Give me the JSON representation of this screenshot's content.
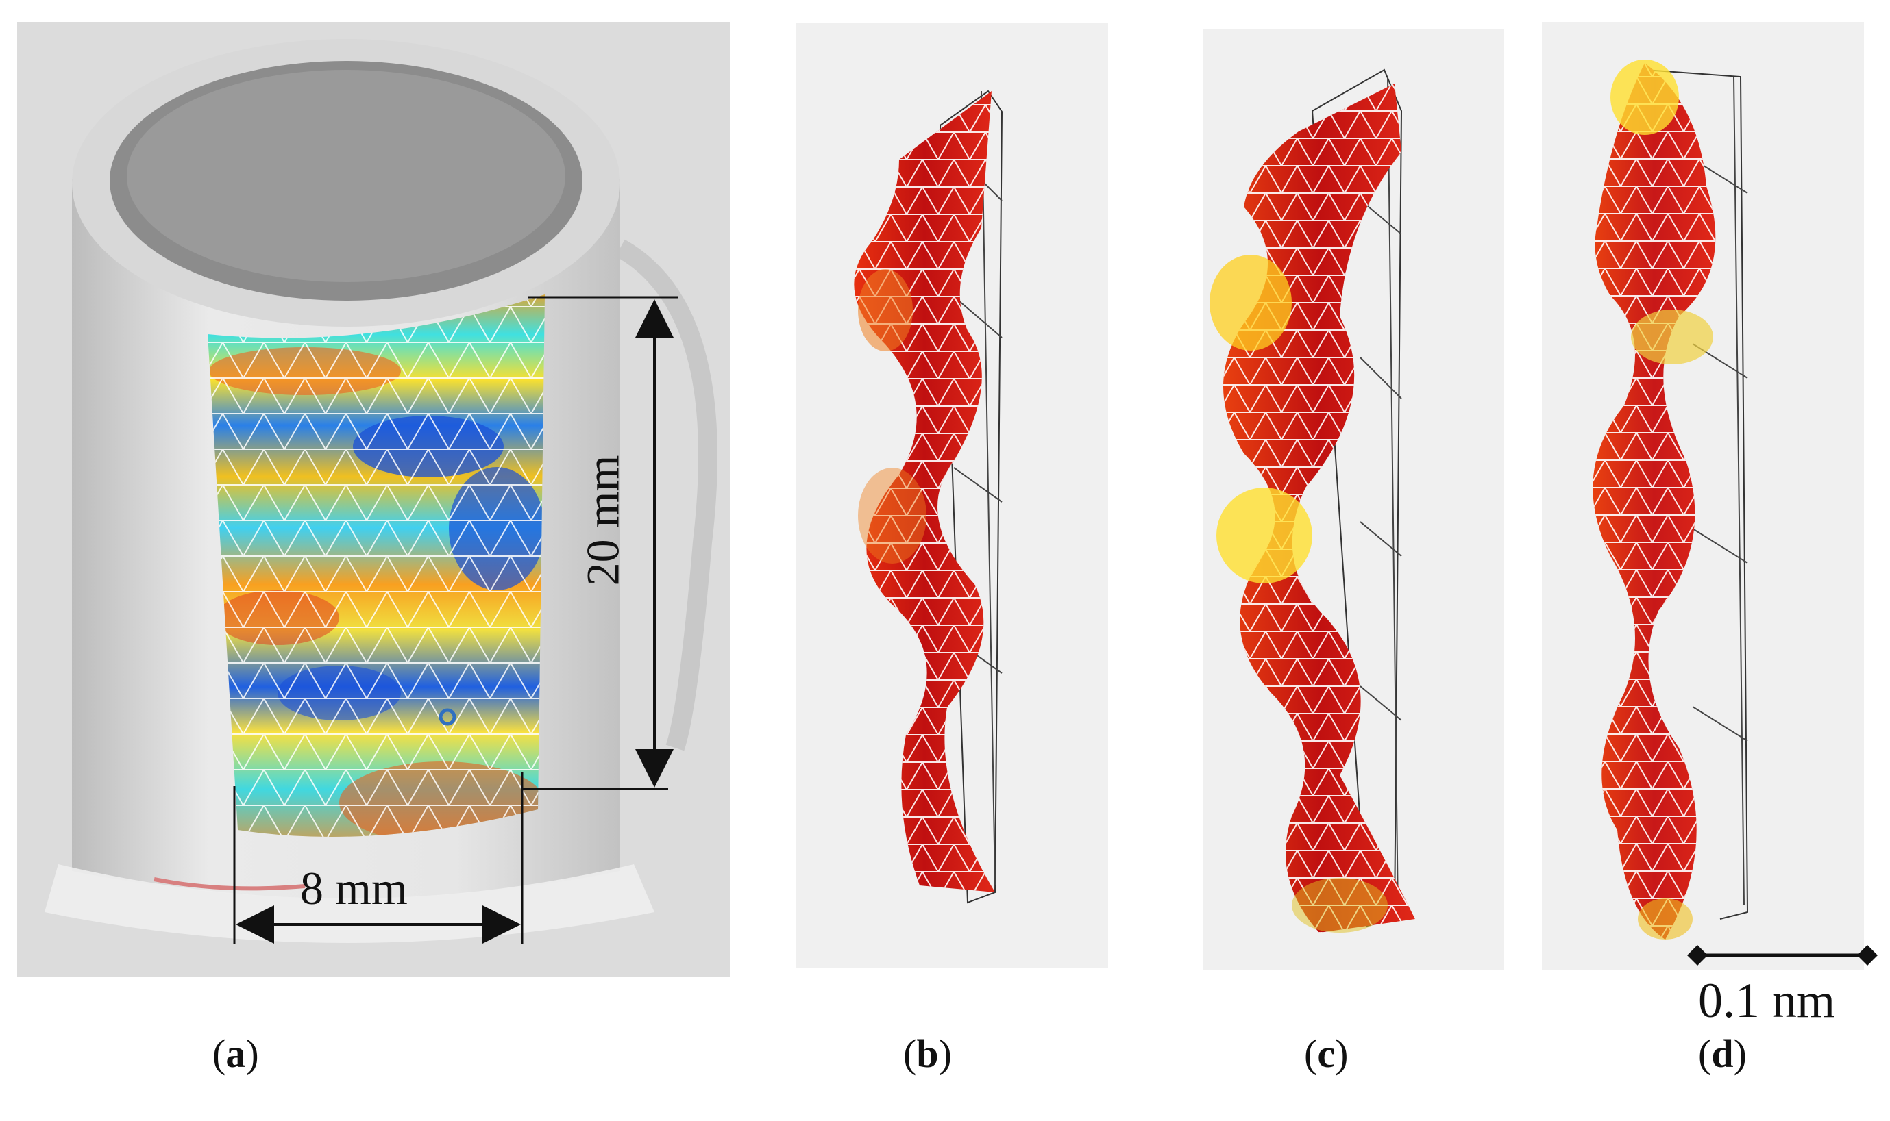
{
  "panels": {
    "a": {
      "caption_open": "(",
      "caption_letter": "a",
      "caption_close": ")",
      "width_label": "8 mm",
      "height_label": "20 mm"
    },
    "b": {
      "caption_open": "(",
      "caption_letter": "b",
      "caption_close": ")"
    },
    "c": {
      "caption_open": "(",
      "caption_letter": "c",
      "caption_close": ")"
    },
    "d": {
      "caption_open": "(",
      "caption_letter": "d",
      "caption_close": ")",
      "scale_label": "0.1 nm"
    }
  },
  "colors": {
    "photo_bg": "#cfcfcf",
    "cylinder": "#e4e4e4",
    "cylinder_top_hole": "#8e8e8e",
    "heat_red": "#e02010",
    "heat_yellow": "#ffe830",
    "heat_blue": "#1060e0",
    "heat_cyan": "#40e0e0",
    "plot_bg": "#f0f0f0"
  }
}
